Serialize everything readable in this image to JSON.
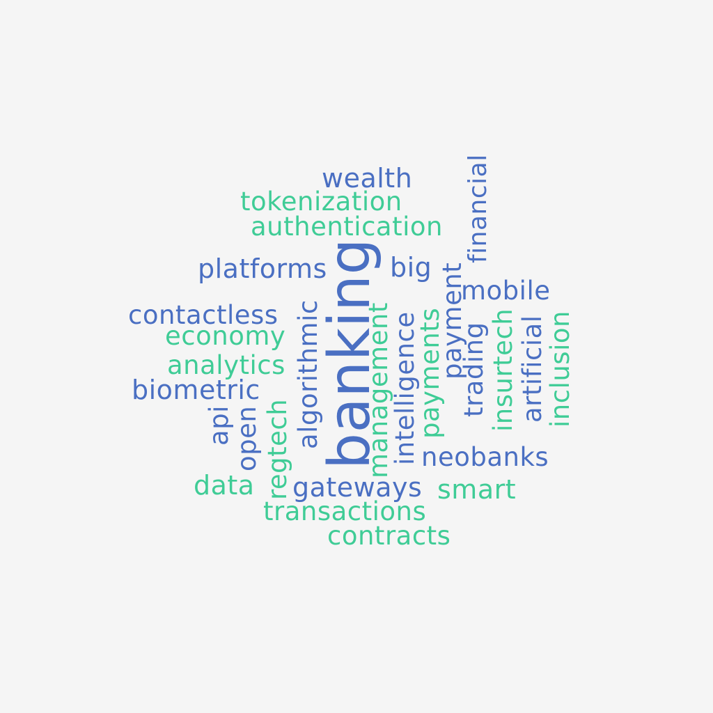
{
  "colors": {
    "background": "#f5f5f5",
    "blue": "#4a6fc2",
    "green": "#3fcc96"
  },
  "words": {
    "wealth": "wealth",
    "tokenization": "tokenization",
    "authentication": "authentication",
    "financial": "financial",
    "platforms": "platforms",
    "banking": "banking",
    "big": "big",
    "payment": "payment",
    "mobile": "mobile",
    "contactless": "contactless",
    "algorithmic": "algorithmic",
    "management": "management",
    "intelligence": "intelligence",
    "payments": "payments",
    "trading": "trading",
    "insurtech": "insurtech",
    "artificial": "artificial",
    "inclusion": "inclusion",
    "economy": "economy",
    "analytics": "analytics",
    "biometric": "biometric",
    "api": "api",
    "open": "open",
    "regtech": "regtech",
    "neobanks": "neobanks",
    "data": "data",
    "gateways": "gateways",
    "smart": "smart",
    "transactions": "transactions",
    "contracts": "contracts"
  }
}
